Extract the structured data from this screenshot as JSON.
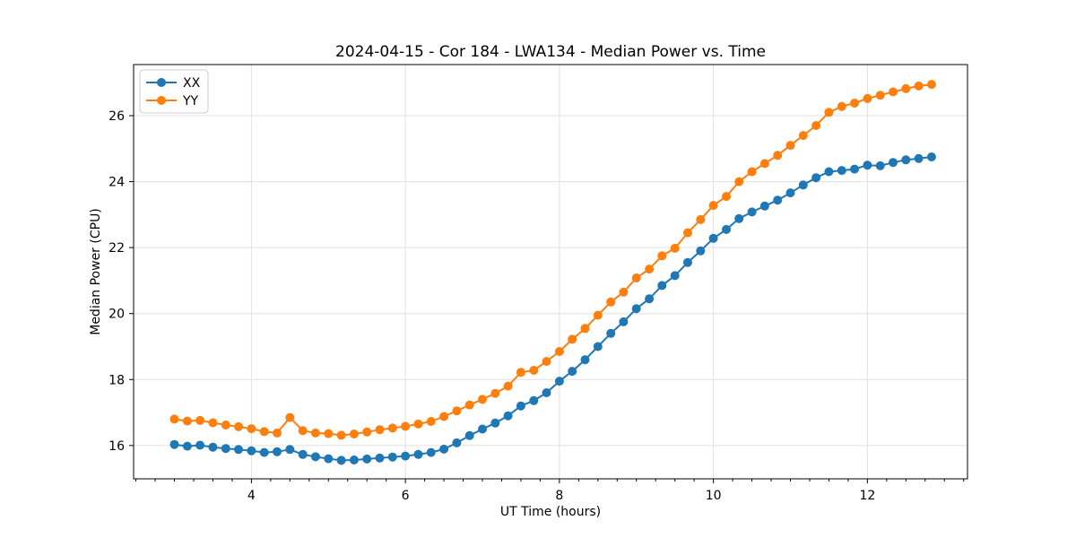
{
  "figure": {
    "title": "2024-04-15 - Cor 184 - LWA134 - Median Power vs. Time"
  },
  "chart_data": {
    "type": "line",
    "title": "2024-04-15 - Cor 184 - LWA134 - Median Power vs. Time",
    "xlabel": "UT Time (hours)",
    "ylabel": "Median Power (CPU)",
    "xlim": [
      2.47,
      13.3
    ],
    "ylim": [
      14.99,
      27.55
    ],
    "xticks": [
      4,
      6,
      8,
      10,
      12
    ],
    "yticks": [
      16,
      18,
      20,
      22,
      24,
      26
    ],
    "minor_xtick_step": 0.25,
    "grid": true,
    "legend_position": "upper left",
    "marker": "circle",
    "x": [
      3.0,
      3.167,
      3.333,
      3.5,
      3.667,
      3.833,
      4.0,
      4.167,
      4.333,
      4.5,
      4.667,
      4.833,
      5.0,
      5.167,
      5.333,
      5.5,
      5.667,
      5.833,
      6.0,
      6.167,
      6.333,
      6.5,
      6.667,
      6.833,
      7.0,
      7.167,
      7.333,
      7.5,
      7.667,
      7.833,
      8.0,
      8.167,
      8.333,
      8.5,
      8.667,
      8.833,
      9.0,
      9.167,
      9.333,
      9.5,
      9.667,
      9.833,
      10.0,
      10.167,
      10.333,
      10.5,
      10.667,
      10.833,
      11.0,
      11.167,
      11.333,
      11.5,
      11.667,
      11.833,
      12.0,
      12.167,
      12.333,
      12.5,
      12.667,
      12.833
    ],
    "series": [
      {
        "name": "XX",
        "color": "#1f77b4",
        "values": [
          16.03,
          15.98,
          16.01,
          15.95,
          15.91,
          15.88,
          15.84,
          15.79,
          15.81,
          15.88,
          15.73,
          15.66,
          15.6,
          15.55,
          15.56,
          15.59,
          15.62,
          15.65,
          15.68,
          15.73,
          15.79,
          15.89,
          16.08,
          16.3,
          16.5,
          16.68,
          16.9,
          17.2,
          17.36,
          17.6,
          17.95,
          18.25,
          18.6,
          19.0,
          19.4,
          19.75,
          20.15,
          20.45,
          20.85,
          21.15,
          21.55,
          21.9,
          22.28,
          22.55,
          22.88,
          23.08,
          23.26,
          23.44,
          23.66,
          23.9,
          24.12,
          24.3,
          24.34,
          24.38,
          24.5,
          24.48,
          24.58,
          24.66,
          24.7,
          24.75
        ]
      },
      {
        "name": "YY",
        "color": "#ff7f0e",
        "values": [
          16.8,
          16.74,
          16.76,
          16.69,
          16.62,
          16.57,
          16.51,
          16.42,
          16.38,
          16.85,
          16.45,
          16.38,
          16.36,
          16.31,
          16.35,
          16.41,
          16.48,
          16.53,
          16.58,
          16.65,
          16.73,
          16.88,
          17.05,
          17.23,
          17.4,
          17.58,
          17.8,
          18.22,
          18.28,
          18.55,
          18.85,
          19.22,
          19.55,
          19.95,
          20.35,
          20.65,
          21.08,
          21.35,
          21.75,
          21.98,
          22.45,
          22.85,
          23.28,
          23.55,
          24.0,
          24.3,
          24.55,
          24.8,
          25.1,
          25.4,
          25.7,
          26.1,
          26.28,
          26.38,
          26.52,
          26.62,
          26.72,
          26.82,
          26.9,
          26.95
        ]
      }
    ]
  }
}
